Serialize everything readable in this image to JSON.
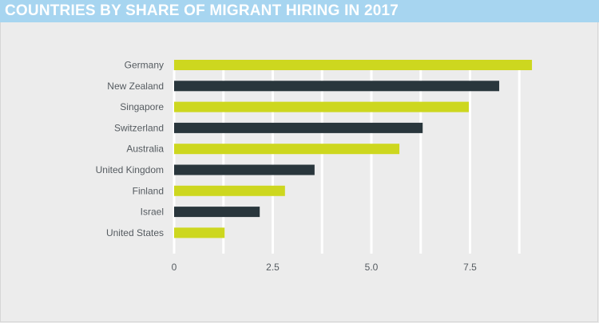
{
  "header": {
    "title": "COUNTRIES BY SHARE OF MIGRANT HIRING IN 2017"
  },
  "colors": {
    "title_bar": "#a7d5f0",
    "background": "#ececec",
    "bar_light": "#cdd71f",
    "bar_dark": "#29363c",
    "gridline": "#ffffff"
  },
  "chart_data": {
    "type": "bar",
    "orientation": "horizontal",
    "title": "COUNTRIES BY SHARE OF MIGRANT HIRING IN 2017",
    "xlabel": "",
    "ylabel": "",
    "categories": [
      "Germany",
      "New Zealand",
      "Singapore",
      "Switzerland",
      "Australia",
      "United Kingdom",
      "Finland",
      "Israel",
      "United States"
    ],
    "values": [
      9.07,
      8.24,
      7.47,
      6.3,
      5.71,
      3.56,
      2.81,
      2.17,
      1.28
    ],
    "bar_colors": [
      "light",
      "dark",
      "light",
      "dark",
      "light",
      "dark",
      "light",
      "dark",
      "light"
    ],
    "xlim": [
      0,
      9.5
    ],
    "x_ticks": [
      0,
      2.5,
      5.0,
      7.5
    ],
    "x_tick_labels": [
      "0",
      "2.5",
      "5.0",
      "7.5"
    ],
    "gridlines": [
      0,
      1.25,
      2.5,
      3.75,
      5.0,
      6.25,
      7.5,
      8.75
    ],
    "grid": true,
    "legend": "none"
  }
}
